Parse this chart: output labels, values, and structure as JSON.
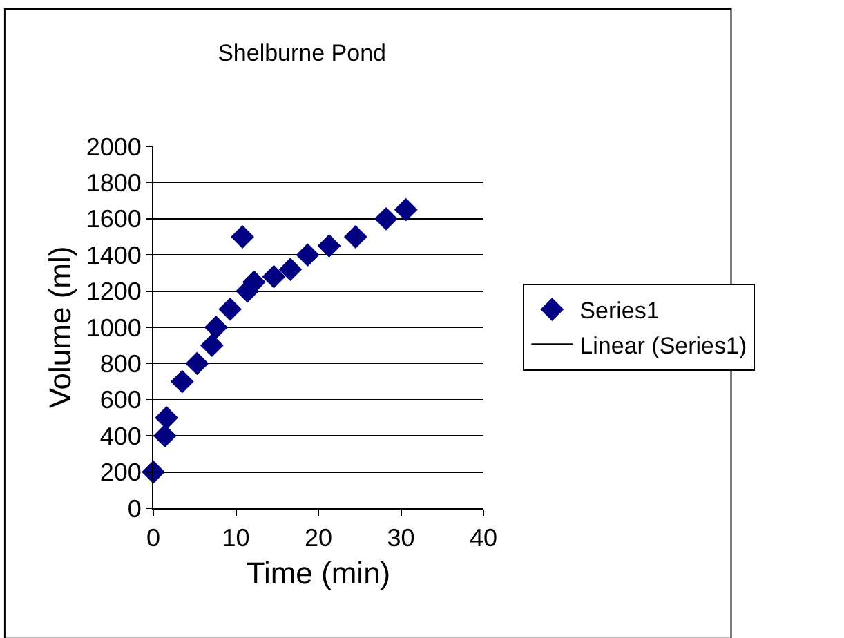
{
  "chart_data": {
    "type": "scatter",
    "title": "Shelburne Pond",
    "xlabel": "Time (min)",
    "ylabel": "Volume (ml)",
    "xlim": [
      0,
      40
    ],
    "xticks": [
      0,
      10,
      20,
      30,
      40
    ],
    "ylim": [
      0,
      2000
    ],
    "yticks": [
      0,
      200,
      400,
      600,
      800,
      1000,
      1200,
      1400,
      1600,
      1800,
      2000
    ],
    "grid": "y",
    "legend": "right",
    "marker": "diamond",
    "series": [
      {
        "name": "Series1",
        "color": "#000080",
        "x": [
          0,
          1.4,
          1.6,
          3.5,
          5.3,
          7.1,
          7.6,
          9.3,
          10.8,
          11.4,
          12.2,
          14.6,
          16.6,
          18.7,
          21.3,
          24.5,
          28.2,
          30.6
        ],
        "values": [
          200,
          400,
          500,
          700,
          800,
          900,
          1000,
          1100,
          1500,
          1200,
          1250,
          1280,
          1320,
          1400,
          1450,
          1500,
          1600,
          1650
        ]
      },
      {
        "name": "Linear (Series1)",
        "type": "line",
        "color": "#000000"
      }
    ]
  }
}
